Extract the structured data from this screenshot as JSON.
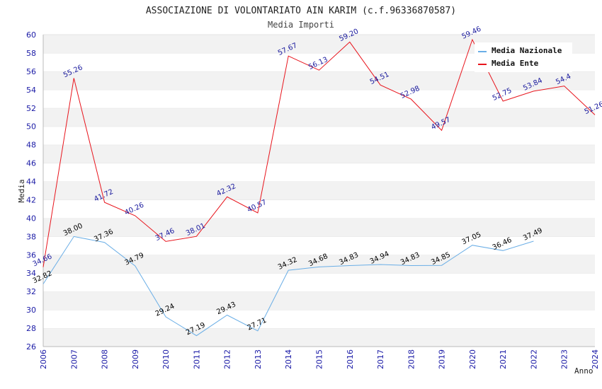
{
  "chart_data": {
    "type": "line",
    "title": "ASSOCIAZIONE DI VOLONTARIATO AIN KARIM (c.f.96336870587)",
    "subtitle": "Media Importi",
    "xlabel": "Anno",
    "ylabel": "Media",
    "x": [
      "2006",
      "2007",
      "2008",
      "2009",
      "2010",
      "2011",
      "2012",
      "2013",
      "2014",
      "2015",
      "2016",
      "2017",
      "2018",
      "2019",
      "2020",
      "2021",
      "2022",
      "2023",
      "2024"
    ],
    "ylim": [
      26,
      60
    ],
    "yticks": [
      "26",
      "28",
      "30",
      "32",
      "34",
      "36",
      "38",
      "40",
      "42",
      "44",
      "46",
      "48",
      "50",
      "52",
      "54",
      "56",
      "58",
      "60"
    ],
    "grid": "horizontal alternating bands",
    "legend_position": "top-right",
    "series": [
      {
        "name": "Media Nazionale",
        "color": "#6aaee6",
        "label_color": "#000000",
        "values": [
          32.82,
          38.0,
          37.36,
          34.79,
          29.24,
          27.19,
          29.43,
          27.71,
          34.32,
          34.68,
          34.83,
          34.94,
          34.83,
          34.85,
          37.05,
          36.46,
          37.49,
          null,
          null
        ],
        "labels": [
          "32.82",
          "38.00",
          "37.36",
          "34.79",
          "29.24",
          "27.19",
          "29.43",
          "27.71",
          "34.32",
          "34.68",
          "34.83",
          "34.94",
          "34.83",
          "34.85",
          "37.05",
          "36.46",
          "37.49",
          "",
          ""
        ]
      },
      {
        "name": "Media Ente",
        "color": "#e8141c",
        "label_color": "#1a1a9e",
        "values": [
          34.66,
          55.26,
          41.72,
          40.26,
          37.46,
          38.01,
          42.32,
          40.57,
          57.67,
          56.13,
          59.2,
          54.51,
          52.98,
          49.57,
          59.46,
          52.75,
          53.84,
          54.4,
          51.26
        ],
        "labels": [
          "34.66",
          "55.26",
          "41.72",
          "40.26",
          "37.46",
          "38.01",
          "42.32",
          "40.57",
          "57.67",
          "56.13",
          "59.20",
          "54.51",
          "52.98",
          "49.57",
          "59.46",
          "52.75",
          "53.84",
          "54.4",
          "51.26"
        ]
      }
    ]
  }
}
